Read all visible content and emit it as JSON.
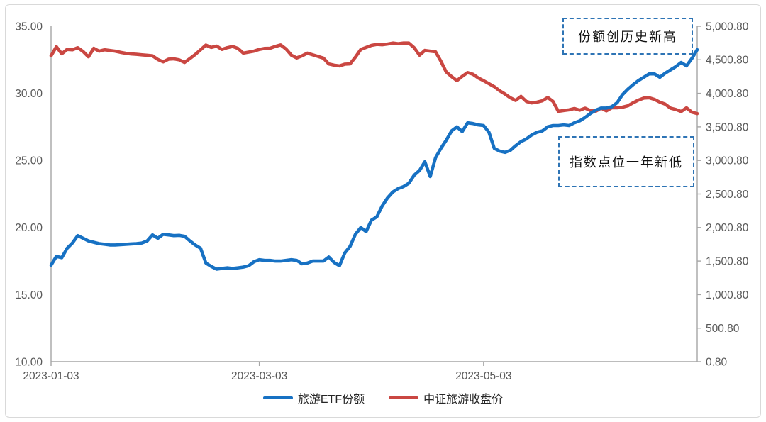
{
  "annotations": {
    "record_high": "份额创历史新高",
    "year_low": "指数点位一年新低",
    "border_color": "#2E74B5"
  },
  "chart_data": {
    "type": "line",
    "title": "",
    "x_axis": {
      "tick_labels": [
        "2023-01-03",
        "2023-03-03",
        "2023-05-03"
      ],
      "tick_indices": [
        0,
        39,
        81
      ],
      "num_points": 122
    },
    "left_axis": {
      "min": 10,
      "max": 35,
      "tick_labels": [
        "35.00",
        "30.00",
        "25.00",
        "20.00",
        "15.00",
        "10.00"
      ],
      "tick_values": [
        35,
        30,
        25,
        20,
        15,
        10
      ]
    },
    "right_axis": {
      "min": 0.8,
      "max": 5000.8,
      "tick_labels": [
        "5,000.80",
        "4,500.80",
        "4,000.80",
        "3,500.80",
        "3,000.80",
        "2,500.80",
        "2,000.80",
        "1,500.80",
        "1,000.80",
        "500.80",
        "0.80"
      ],
      "tick_values": [
        5000.8,
        4500.8,
        4000.8,
        3500.8,
        3000.8,
        2500.8,
        2000.8,
        1500.8,
        1000.8,
        500.8,
        0.8
      ]
    },
    "grid": false,
    "legend_position": "bottom",
    "axis_line_color": "#A6A6A6",
    "axis_label_color": "#595959",
    "series": [
      {
        "name": "旅游ETF份额",
        "axis": "left",
        "color": "#1771C3",
        "values": [
          17.2,
          17.85,
          17.75,
          18.45,
          18.85,
          19.4,
          19.2,
          19.0,
          18.9,
          18.8,
          18.75,
          18.7,
          18.7,
          18.72,
          18.75,
          18.78,
          18.8,
          18.85,
          19.0,
          19.45,
          19.2,
          19.5,
          19.45,
          19.4,
          19.42,
          19.35,
          19.0,
          18.7,
          18.45,
          17.35,
          17.1,
          16.9,
          16.95,
          17.0,
          16.95,
          17.0,
          17.05,
          17.15,
          17.45,
          17.6,
          17.55,
          17.55,
          17.5,
          17.5,
          17.55,
          17.6,
          17.55,
          17.3,
          17.35,
          17.5,
          17.5,
          17.5,
          17.8,
          17.4,
          17.15,
          18.1,
          18.6,
          19.5,
          20.0,
          19.7,
          20.55,
          20.8,
          21.6,
          22.2,
          22.65,
          22.9,
          23.05,
          23.3,
          23.9,
          24.25,
          24.9,
          23.8,
          25.2,
          25.9,
          26.5,
          27.2,
          27.5,
          27.15,
          27.8,
          27.75,
          27.65,
          27.6,
          27.1,
          25.9,
          25.7,
          25.6,
          25.75,
          26.1,
          26.4,
          26.6,
          26.9,
          27.1,
          27.2,
          27.5,
          27.6,
          27.6,
          27.65,
          27.6,
          27.8,
          27.95,
          28.2,
          28.5,
          28.75,
          28.9,
          28.9,
          29.0,
          29.3,
          29.9,
          30.3,
          30.65,
          30.95,
          31.2,
          31.45,
          31.45,
          31.2,
          31.5,
          31.75,
          32.0,
          32.3,
          32.05,
          32.6,
          33.25
        ]
      },
      {
        "name": "中证旅游收盘价",
        "axis": "right",
        "color": "#CA4742",
        "values": [
          4560,
          4695,
          4590,
          4655,
          4650,
          4680,
          4625,
          4545,
          4672,
          4630,
          4650,
          4640,
          4630,
          4612,
          4598,
          4588,
          4582,
          4575,
          4568,
          4560,
          4505,
          4470,
          4510,
          4515,
          4500,
          4462,
          4520,
          4580,
          4650,
          4720,
          4685,
          4705,
          4655,
          4682,
          4700,
          4670,
          4600,
          4615,
          4630,
          4655,
          4670,
          4672,
          4700,
          4722,
          4662,
          4570,
          4528,
          4560,
          4600,
          4575,
          4550,
          4525,
          4440,
          4420,
          4410,
          4435,
          4440,
          4540,
          4655,
          4685,
          4715,
          4730,
          4725,
          4735,
          4750,
          4740,
          4750,
          4750,
          4680,
          4570,
          4640,
          4630,
          4620,
          4480,
          4320,
          4250,
          4190,
          4255,
          4310,
          4285,
          4230,
          4190,
          4145,
          4100,
          4040,
          3990,
          3935,
          3895,
          3955,
          3880,
          3858,
          3870,
          3890,
          3940,
          3880,
          3732,
          3745,
          3755,
          3775,
          3750,
          3780,
          3745,
          3735,
          3780,
          3740,
          3785,
          3785,
          3795,
          3815,
          3860,
          3900,
          3930,
          3935,
          3910,
          3870,
          3840,
          3780,
          3760,
          3730,
          3785,
          3720,
          3700
        ]
      }
    ]
  }
}
